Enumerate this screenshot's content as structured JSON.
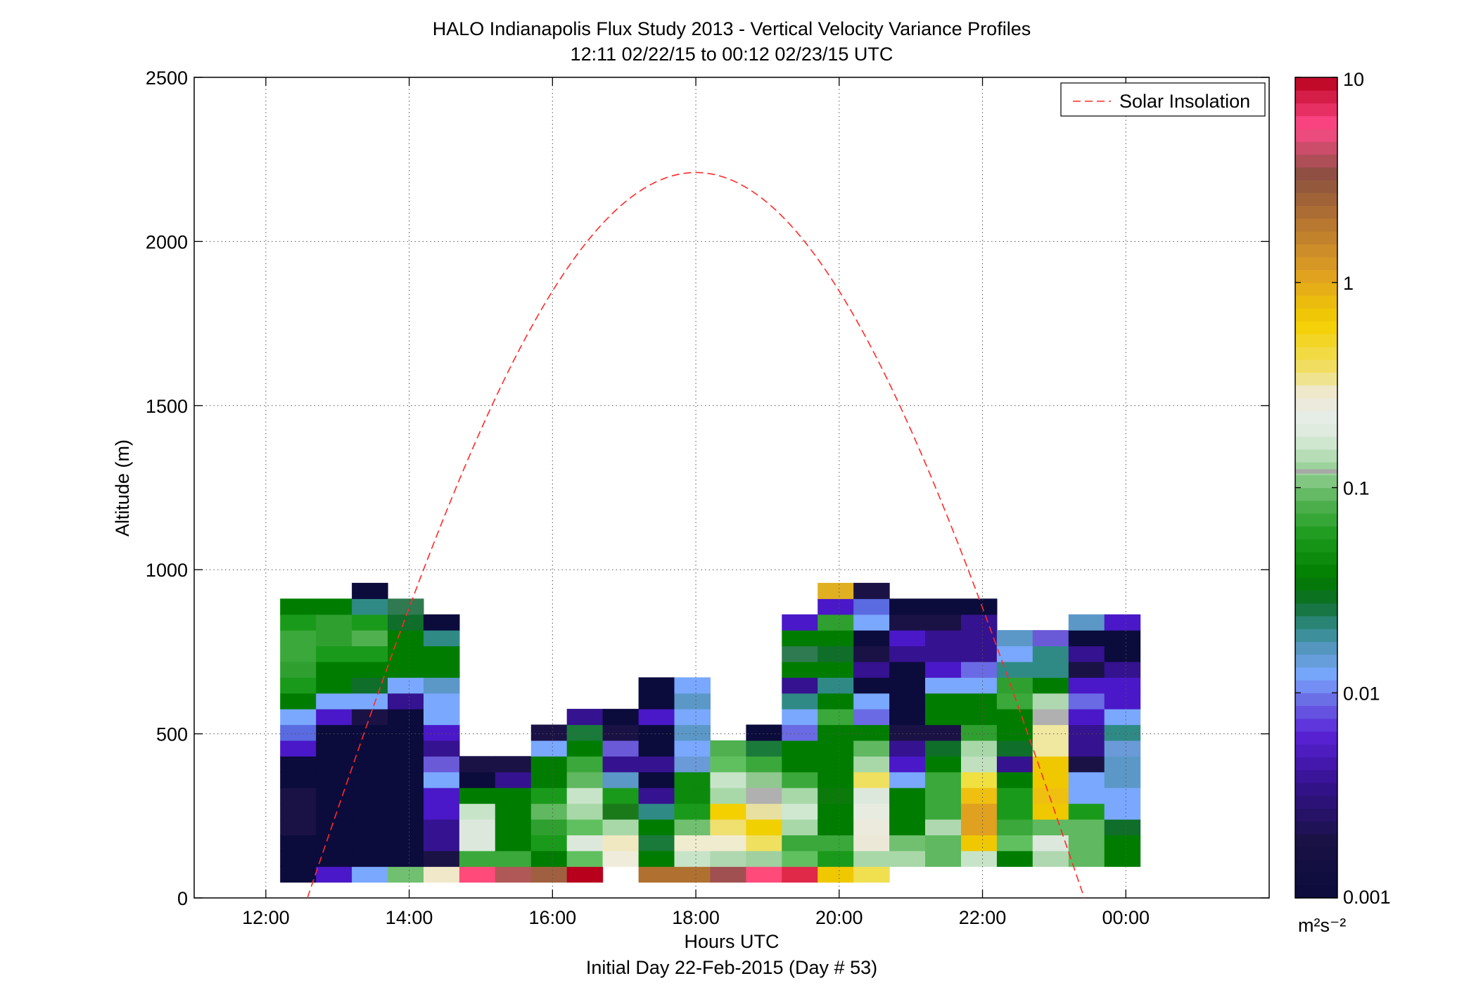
{
  "title_line1": "HALO Indianapolis Flux Study 2013 - Vertical Velocity Variance Profiles",
  "title_line2": "12:11 02/22/15 to 00:12 02/23/15  UTC",
  "xlabel": "Hours UTC",
  "subtitle": "Initial Day 22-Feb-2015 (Day # 53)",
  "ylabel": "Altitude (m)",
  "legend": {
    "label": "Solar Insolation",
    "color": "#ff2a2a"
  },
  "colorbar": {
    "unit": "m²s⁻²",
    "scale": "log",
    "range": [
      0.001,
      10
    ],
    "ticks": [
      {
        "v": 0.001,
        "label": "0.001"
      },
      {
        "v": 0.01,
        "label": "0.01"
      },
      {
        "v": 0.1,
        "label": "0.1"
      },
      {
        "v": 1,
        "label": "1"
      },
      {
        "v": 10,
        "label": "10"
      }
    ],
    "colormap": [
      [
        0.0,
        "#0b0b3c"
      ],
      [
        0.07,
        "#1a1245"
      ],
      [
        0.14,
        "#35128f"
      ],
      [
        0.2,
        "#5a22d8"
      ],
      [
        0.24,
        "#6a6ae4"
      ],
      [
        0.27,
        "#7aa8ff"
      ],
      [
        0.3,
        "#5b98c8"
      ],
      [
        0.33,
        "#2f8a86"
      ],
      [
        0.36,
        "#0f6e2a"
      ],
      [
        0.39,
        "#007d00"
      ],
      [
        0.44,
        "#1a9a1a"
      ],
      [
        0.48,
        "#50b050"
      ],
      [
        0.53,
        "#a8d8a8"
      ],
      [
        0.56,
        "#d8ead8"
      ],
      [
        0.59,
        "#e8ece8"
      ],
      [
        0.62,
        "#f0e8c8"
      ],
      [
        0.64,
        "#f0e070"
      ],
      [
        0.7,
        "#f4d000"
      ],
      [
        0.76,
        "#e0a020"
      ],
      [
        0.82,
        "#b87830"
      ],
      [
        0.88,
        "#8a5040"
      ],
      [
        0.94,
        "#ff4a8a"
      ],
      [
        1.0,
        "#b8001c"
      ]
    ]
  },
  "chart_data": {
    "type": "heatmap",
    "title": "HALO Indianapolis Flux Study 2013 - Vertical Velocity Variance Profiles",
    "xlabel": "Hours UTC",
    "ylabel": "Altitude (m)",
    "xlim": [
      11,
      26
    ],
    "ylim": [
      0,
      2500
    ],
    "x_ticks": [
      {
        "v": 12,
        "label": "12:00"
      },
      {
        "v": 14,
        "label": "14:00"
      },
      {
        "v": 16,
        "label": "16:00"
      },
      {
        "v": 18,
        "label": "18:00"
      },
      {
        "v": 20,
        "label": "20:00"
      },
      {
        "v": 22,
        "label": "22:00"
      },
      {
        "v": 24,
        "label": "00:00"
      }
    ],
    "y_ticks": [
      0,
      500,
      1000,
      1500,
      2000,
      2500
    ],
    "grid": true,
    "legend_position": "top-right",
    "cell_width_hours": 0.5,
    "cell_height_m": 48,
    "first_column_center_hours": 12.45,
    "first_row_bottom_m": 48,
    "columns": [
      [
        "#0b0b3c",
        "#0b0b3c",
        "#0b0b3c",
        "#1a1245",
        "#1a1245",
        "#1a1245",
        "#0b0b3c",
        "#0b0b3c",
        "#4a18c8",
        "#5a6ae0",
        "#7aa8ff",
        "#007d00",
        "#1a9a1a",
        "#2fa02f",
        "#3aa83a",
        "#3aa83a",
        "#1a9a1a",
        "#007d00"
      ],
      [
        "#4a18c8",
        "#0b0b3c",
        "#0b0b3c",
        "#0b0b3c",
        "#0b0b3c",
        "#0b0b3c",
        "#0b0b3c",
        "#0b0b3c",
        "#0b0b3c",
        "#0b0b3c",
        "#4a18c8",
        "#7aa8ff",
        "#007d00",
        "#007d00",
        "#1a9a1a",
        "#2fa02f",
        "#2fa02f",
        "#007d00"
      ],
      [
        "#7aa8ff",
        "#0b0b3c",
        "#0b0b3c",
        "#0b0b3c",
        "#0b0b3c",
        "#0b0b3c",
        "#0b0b3c",
        "#0b0b3c",
        "#0b0b3c",
        "#0b0b3c",
        "#1a1245",
        "#7aa8ff",
        "#0f6e2a",
        "#007d00",
        "#1a9a1a",
        "#50b050",
        "#1a9a1a",
        "#2f8a86",
        "#0b0b3c"
      ],
      [
        "#70c070",
        "#0b0b3c",
        "#0b0b3c",
        "#0b0b3c",
        "#0b0b3c",
        "#0b0b3c",
        "#0b0b3c",
        "#0b0b3c",
        "#0b0b3c",
        "#0b0b3c",
        "#0b0b3c",
        "#35128f",
        "#7aa8ff",
        "#007d00",
        "#007d00",
        "#007d00",
        "#0f6e2a",
        "#2f7a50"
      ],
      [
        "#f0e8c8",
        "#1a1245",
        "#35128f",
        "#35128f",
        "#4a18c8",
        "#4a18c8",
        "#7aa8ff",
        "#6a5ad8",
        "#35128f",
        "#4a18c8",
        "#7aa8ff",
        "#7aa8ff",
        "#5b98c8",
        "#007d00",
        "#007d00",
        "#2f8a86",
        "#0b0b3c"
      ],
      [
        "#ff4a7a",
        "#3aa83a",
        "#dde8dd",
        "#dde8dd",
        "#c8e4c8",
        "#007d00",
        "#0b0b3c",
        "#1a1245"
      ],
      [
        "#b05858",
        "#3aa83a",
        "#007d00",
        "#007d00",
        "#007d00",
        "#007d00",
        "#35128f",
        "#1a1245"
      ],
      [
        "#a06040",
        "#007d00",
        "#1a9a1a",
        "#2fa02f",
        "#60b860",
        "#1a9a1a",
        "#007d00",
        "#007d00",
        "#7aa8ff",
        "#1a1245"
      ],
      [
        "#b8001c",
        "#60c060",
        "#dde8dd",
        "#60c060",
        "#a8d8a8",
        "#c8e4c8",
        "#60b860",
        "#3aa83a",
        "#007d00",
        "#1a7a3a",
        "#35128f"
      ],
      [
        "#ffffff",
        "#f0ecdc",
        "#f0e8c0",
        "#a8d8a8",
        "#1a7a1a",
        "#1a9a1a",
        "#5b98c8",
        "#35128f",
        "#6a5ad8",
        "#1a1245",
        "#0b0b3c"
      ],
      [
        "#b07030",
        "#007d00",
        "#1a7a3a",
        "#007d00",
        "#2f8a86",
        "#35128f",
        "#0b0b3c",
        "#35128f",
        "#0b0b3c",
        "#0b0b3c",
        "#4a18c8",
        "#0b0b3c",
        "#0b0b3c"
      ],
      [
        "#b07030",
        "#c8e4c8",
        "#f0ecd0",
        "#70c070",
        "#1a9a1a",
        "#0b8a0b",
        "#0b8a0b",
        "#6a9ad8",
        "#7aa8ff",
        "#5b98c8",
        "#7aa8ff",
        "#5b98c8",
        "#7aa8ff"
      ],
      [
        "#a05050",
        "#b0d8b0",
        "#f0ecd0",
        "#f0e070",
        "#f4d000",
        "#a8d8a8",
        "#c8e4c8",
        "#60c060",
        "#50b050"
      ],
      [
        "#ff4a7a",
        "#a0d0a0",
        "#f0e060",
        "#f0d000",
        "#e8e0a0",
        "#b0b0b0",
        "#90c890",
        "#3aa83a",
        "#1a7a3a",
        "#0b0b3c"
      ],
      [
        "#e02848",
        "#60c060",
        "#3aa83a",
        "#a8d8a8",
        "#d0e8d0",
        "#a8d8a8",
        "#3aa83a",
        "#007d00",
        "#007d00",
        "#6a6ae4",
        "#7aa8ff",
        "#2f8a86",
        "#35128f",
        "#007d00",
        "#2f7a50",
        "#007d00",
        "#4a18c8"
      ],
      [
        "#f0c800",
        "#1a9a1a",
        "#3aa83a",
        "#007d00",
        "#007d00",
        "#0b7a0b",
        "#007d00",
        "#007d00",
        "#007d00",
        "#007d00",
        "#3aa83a",
        "#007d00",
        "#2f8a86",
        "#007d00",
        "#0f6e2a",
        "#007d00",
        "#2fa02f",
        "#4a18c8",
        "#e0b020"
      ],
      [
        "#f0e050",
        "#a8d8a8",
        "#ece8d8",
        "#eceadc",
        "#e8ece0",
        "#dde8dd",
        "#f0e060",
        "#a8d8a8",
        "#60b860",
        "#007d00",
        "#6a6ae4",
        "#7aa8ff",
        "#0b0b3c",
        "#35128f",
        "#1a1245",
        "#0b0b3c",
        "#7aa8ff",
        "#5a6ae0",
        "#1a1245"
      ],
      [
        "#ffffff",
        "#a8d8a8",
        "#70c070",
        "#007d00",
        "#007d00",
        "#007d00",
        "#7aa8ff",
        "#4a18c8",
        "#35128f",
        "#1a1245",
        "#0b0b3c",
        "#0b0b3c",
        "#0b0b3c",
        "#0b0b3c",
        "#35128f",
        "#4a18c8",
        "#1a1245",
        "#0b0b3c"
      ],
      [
        "#ffffff",
        "#60b860",
        "#60b860",
        "#b0d8b0",
        "#3aa83a",
        "#3aa83a",
        "#3aa83a",
        "#007d00",
        "#0f6e2a",
        "#1a1245",
        "#007d00",
        "#007d00",
        "#7aa8ff",
        "#4a18c8",
        "#35128f",
        "#35128f",
        "#1a1245",
        "#0b0b3c"
      ],
      [
        "#ffffff",
        "#c8e4c8",
        "#f0c800",
        "#e0a020",
        "#e0a020",
        "#f0c010",
        "#f0e040",
        "#c0e0c0",
        "#a8d8a8",
        "#2fa02f",
        "#007d00",
        "#007d00",
        "#7aa8ff",
        "#6a6ae4",
        "#35128f",
        "#35128f",
        "#35128f",
        "#0b0b3c"
      ],
      [
        "#ffffff",
        "#007d00",
        "#60c060",
        "#3aa83a",
        "#1a9a1a",
        "#1a9a1a",
        "#007d00",
        "#35128f",
        "#0f6e2a",
        "#007d00",
        "#007d00",
        "#3aa83a",
        "#2fa02f",
        "#2f8a86",
        "#7aa8ff",
        "#5b98c8"
      ],
      [
        "#ffffff",
        "#b0d8b0",
        "#dde8dd",
        "#60b860",
        "#f0c800",
        "#f0c010",
        "#f0c800",
        "#f0c800",
        "#f0e8a0",
        "#f0e8a0",
        "#b0b0b0",
        "#b0d8b0",
        "#007d00",
        "#2f8a86",
        "#2f8a86",
        "#6a5ad8"
      ],
      [
        "#ffffff",
        "#60b860",
        "#60b860",
        "#60b860",
        "#1a9a1a",
        "#7aa8ff",
        "#7aa8ff",
        "#1a1245",
        "#35128f",
        "#35128f",
        "#4a18c8",
        "#6a6ae4",
        "#4a18c8",
        "#1a1245",
        "#35128f",
        "#0b0b3c",
        "#5b98c8"
      ],
      [
        "#ffffff",
        "#007d00",
        "#007d00",
        "#0f6e2a",
        "#7aa8ff",
        "#7aa8ff",
        "#5b98c8",
        "#5b98c8",
        "#6a9ad8",
        "#2f8a86",
        "#7aa8ff",
        "#4a18c8",
        "#4a18c8",
        "#35128f",
        "#0b0b3c",
        "#0b0b3c",
        "#4a18c8"
      ]
    ],
    "solar_insolation_curve": {
      "peak_time_hours": 18.0,
      "peak_altitude_m": 2210,
      "half_width_hours": 5.42
    }
  }
}
